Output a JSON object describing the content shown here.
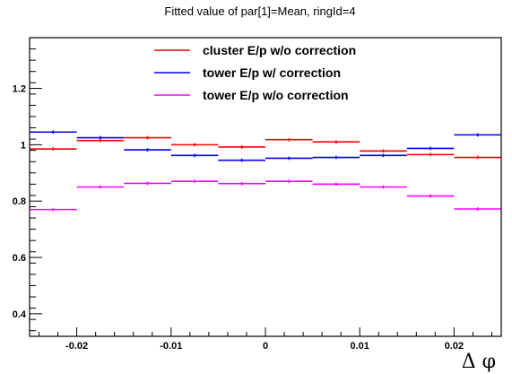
{
  "chart_data": {
    "type": "line",
    "title": "Fitted value of par[1]=Mean, ringId=4",
    "xlabel": "Δ φ",
    "ylabel": "",
    "xlim": [
      -0.025,
      0.025
    ],
    "ylim": [
      0.32,
      1.38
    ],
    "x_bin_edges": [
      -0.025,
      -0.02,
      -0.015,
      -0.01,
      -0.005,
      0.0,
      0.005,
      0.01,
      0.015,
      0.02,
      0.025
    ],
    "x_ticks": [
      {
        "value": -0.02,
        "label": "-0.02"
      },
      {
        "value": -0.01,
        "label": "-0.01"
      },
      {
        "value": 0,
        "label": "0"
      },
      {
        "value": 0.01,
        "label": "0.01"
      },
      {
        "value": 0.02,
        "label": "0.02"
      }
    ],
    "y_ticks": [
      {
        "value": 0.4,
        "label": "0.4"
      },
      {
        "value": 0.6,
        "label": "0.6"
      },
      {
        "value": 0.8,
        "label": "0.8"
      },
      {
        "value": 1.0,
        "label": "1"
      },
      {
        "value": 1.2,
        "label": "1.2"
      }
    ],
    "legend_position": "top-center",
    "series": [
      {
        "name": "cluster E/p w/o correction",
        "color": "#ff0000",
        "values": [
          0.985,
          1.015,
          1.025,
          1.0,
          0.992,
          1.018,
          1.01,
          0.978,
          0.965,
          0.955
        ]
      },
      {
        "name": "tower E/p w/ correction",
        "color": "#0000ff",
        "values": [
          1.045,
          1.025,
          0.982,
          0.962,
          0.945,
          0.952,
          0.955,
          0.962,
          0.987,
          1.035
        ]
      },
      {
        "name": "tower E/p w/o correction",
        "color": "#ff00ff",
        "values": [
          0.77,
          0.85,
          0.863,
          0.87,
          0.862,
          0.87,
          0.86,
          0.85,
          0.818,
          0.772
        ]
      }
    ]
  }
}
